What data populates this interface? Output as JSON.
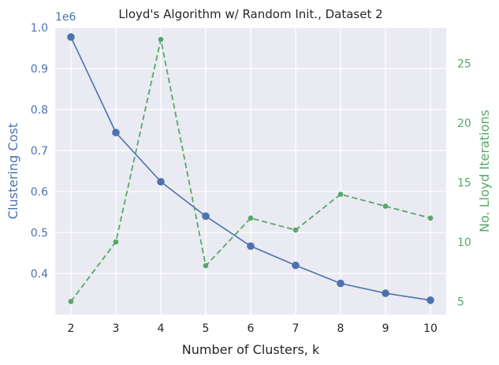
{
  "chart_data": {
    "type": "line",
    "title": "Lloyd's Algorithm w/ Random Init., Dataset 2",
    "xlabel": "Number of Clusters, k",
    "ylabel_left": "Clustering Cost",
    "ylabel_right": "No. Lloyd Iterations",
    "offset_label": "1e6",
    "x": [
      2,
      3,
      4,
      5,
      6,
      7,
      8,
      9,
      10
    ],
    "xlim": [
      1.65,
      10.35
    ],
    "ylim_left": [
      0.3,
      1.0
    ],
    "ylim_right": [
      3.9,
      28.0
    ],
    "x_ticks": [
      "2",
      "3",
      "4",
      "5",
      "6",
      "7",
      "8",
      "9",
      "10"
    ],
    "y_ticks_left": [
      "0.4",
      "0.5",
      "0.6",
      "0.7",
      "0.8",
      "0.9",
      "1.0"
    ],
    "y_ticks_right": [
      "5",
      "10",
      "15",
      "20",
      "25"
    ],
    "series": [
      {
        "axis": "left",
        "style": "solid",
        "marker": "circle",
        "color": "#4c72b0",
        "values": [
          0.977,
          0.744,
          0.624,
          0.54,
          0.467,
          0.42,
          0.376,
          0.352,
          0.335
        ]
      },
      {
        "axis": "right",
        "style": "dashed",
        "marker": "circle",
        "color": "#55a868",
        "values": [
          5,
          10,
          27,
          8,
          12,
          11,
          14,
          13,
          12
        ]
      }
    ],
    "grid": true,
    "background": "#eaeaf2"
  }
}
